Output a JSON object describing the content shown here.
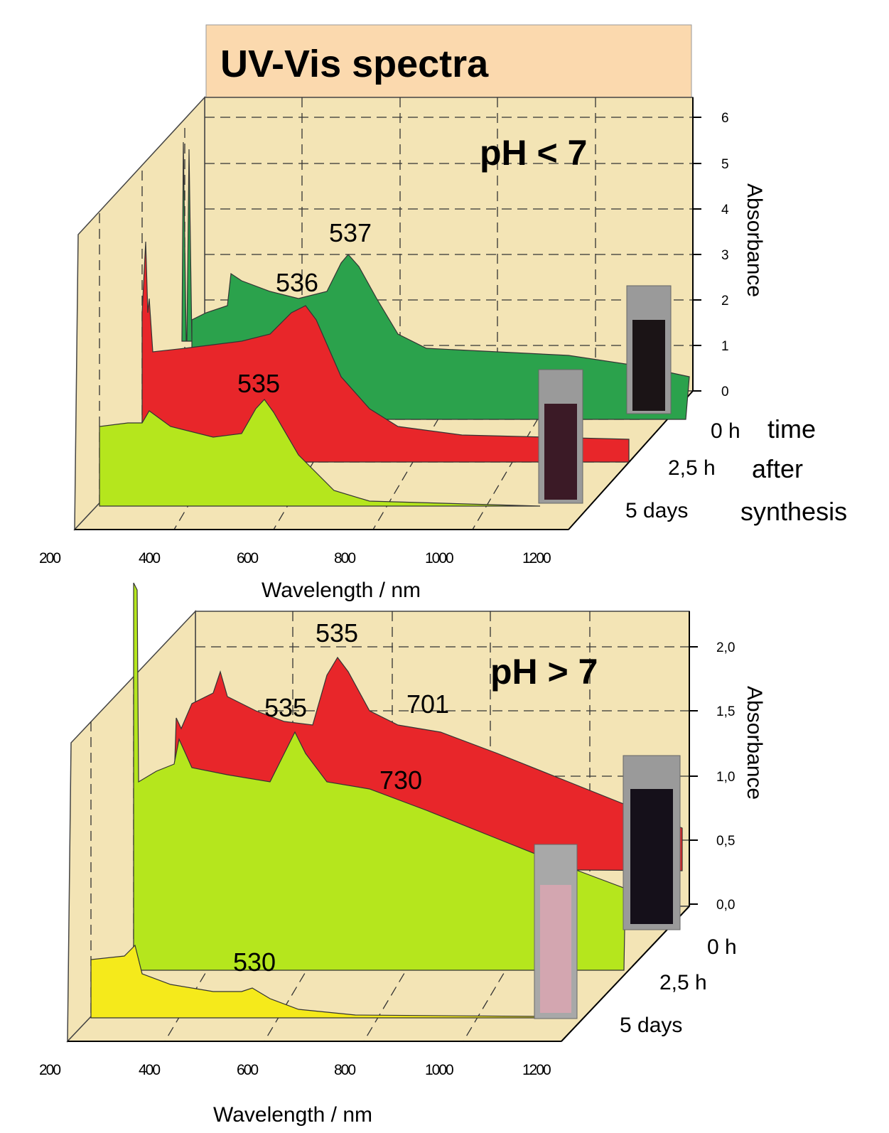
{
  "title": "UV-Vis spectra",
  "panels": [
    {
      "label": "pH < 7",
      "peaks": [
        537,
        536,
        535
      ],
      "y_axis": {
        "title": "Absorbance",
        "ticks": [
          0,
          1,
          2,
          3,
          4,
          5,
          6
        ]
      },
      "x_axis": {
        "title": "Wavelength / nm",
        "ticks": [
          200,
          400,
          600,
          800,
          1000,
          1200
        ]
      },
      "series_labels": [
        "0 h",
        "2,5 h",
        "5 days"
      ]
    },
    {
      "label": "pH > 7",
      "peaks": [
        535,
        535,
        701,
        730,
        530
      ],
      "y_axis": {
        "title": "Absorbance",
        "ticks": [
          "0,0",
          "0,5",
          "1,0",
          "1,5",
          "2,0"
        ]
      },
      "x_axis": {
        "title": "Wavelength / nm",
        "ticks": [
          200,
          400,
          600,
          800,
          1000,
          1200
        ]
      },
      "series_labels": [
        "0 h",
        "2,5 h",
        "5 days"
      ]
    }
  ],
  "time_caption": [
    "time",
    "after",
    "synthesis"
  ]
}
